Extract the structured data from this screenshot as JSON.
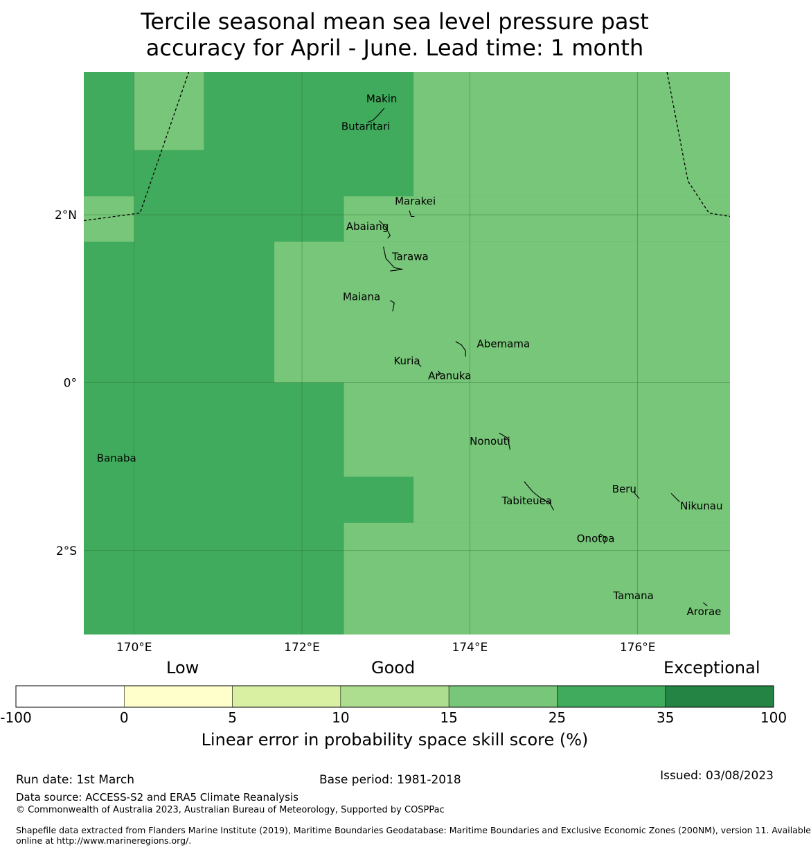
{
  "title": {
    "line1": "Tercile seasonal mean sea level pressure past",
    "line2": "accuracy for April - June. Lead time: 1 month"
  },
  "map": {
    "lon_range": [
      169.4,
      177.1
    ],
    "lat_range": [
      -3.0,
      3.7
    ],
    "lon_ticks": [
      {
        "value": 170,
        "label": "170°E"
      },
      {
        "value": 172,
        "label": "172°E"
      },
      {
        "value": 174,
        "label": "174°E"
      },
      {
        "value": 176,
        "label": "176°E"
      }
    ],
    "lat_ticks": [
      {
        "value": 2,
        "label": "2°N"
      },
      {
        "value": 0,
        "label": "0°"
      },
      {
        "value": -2,
        "label": "2°S"
      }
    ],
    "grid": true,
    "cells": [
      {
        "lon": [
          169.4,
          177.1
        ],
        "lat": [
          -3.0,
          3.7
        ],
        "category": "25-35"
      },
      {
        "lon": [
          170.0,
          170.83
        ],
        "lat": [
          2.77,
          3.7
        ],
        "category": "15-25"
      },
      {
        "lon": [
          169.4,
          170.0
        ],
        "lat": [
          1.68,
          2.22
        ],
        "category": "15-25"
      },
      {
        "lon": [
          173.33,
          177.1
        ],
        "lat": [
          2.22,
          3.7
        ],
        "category": "15-25"
      },
      {
        "lon": [
          172.5,
          177.1
        ],
        "lat": [
          1.68,
          2.22
        ],
        "category": "15-25"
      },
      {
        "lon": [
          171.67,
          177.1
        ],
        "lat": [
          0.0,
          1.68
        ],
        "category": "15-25"
      },
      {
        "lon": [
          172.5,
          177.1
        ],
        "lat": [
          -1.12,
          0.0
        ],
        "category": "15-25"
      },
      {
        "lon": [
          173.33,
          177.1
        ],
        "lat": [
          -1.67,
          -1.12
        ],
        "category": "15-25"
      },
      {
        "lon": [
          172.5,
          177.1
        ],
        "lat": [
          -3.0,
          -1.67
        ],
        "category": "15-25"
      }
    ],
    "boundaries": [
      [
        [
          169.4,
          1.93
        ],
        [
          170.07,
          2.02
        ],
        [
          170.65,
          3.7
        ]
      ],
      [
        [
          176.35,
          3.7
        ],
        [
          176.6,
          2.4
        ],
        [
          176.85,
          2.02
        ],
        [
          177.1,
          1.98
        ]
      ]
    ],
    "places": [
      {
        "name": "Makin",
        "lon": 172.95,
        "lat": 3.34
      },
      {
        "name": "Butaritari",
        "lon": 172.76,
        "lat": 3.01
      },
      {
        "name": "Marakei",
        "lon": 173.35,
        "lat": 2.12
      },
      {
        "name": "Abaiang",
        "lon": 172.78,
        "lat": 1.82
      },
      {
        "name": "Tarawa",
        "lon": 173.29,
        "lat": 1.46
      },
      {
        "name": "Maiana",
        "lon": 172.71,
        "lat": 0.98
      },
      {
        "name": "Abemama",
        "lon": 174.4,
        "lat": 0.42
      },
      {
        "name": "Kuria",
        "lon": 173.25,
        "lat": 0.22
      },
      {
        "name": "Aranuka",
        "lon": 173.76,
        "lat": 0.04
      },
      {
        "name": "Banaba",
        "lon": 169.79,
        "lat": -0.94
      },
      {
        "name": "Nonouti",
        "lon": 174.24,
        "lat": -0.74
      },
      {
        "name": "Tabiteuea",
        "lon": 174.68,
        "lat": -1.45
      },
      {
        "name": "Beru",
        "lon": 175.84,
        "lat": -1.31
      },
      {
        "name": "Nikunau",
        "lon": 176.76,
        "lat": -1.51
      },
      {
        "name": "Onotoa",
        "lon": 175.5,
        "lat": -1.9
      },
      {
        "name": "Tamana",
        "lon": 175.95,
        "lat": -2.58
      },
      {
        "name": "Arorae",
        "lon": 176.79,
        "lat": -2.77
      }
    ]
  },
  "colorbar": {
    "labels": {
      "low": "Low",
      "good": "Good",
      "exceptional": "Exceptional"
    },
    "bins": [
      {
        "from": "-100",
        "to": "0",
        "color": "#ffffff"
      },
      {
        "from": "0",
        "to": "5",
        "color": "#ffffcc"
      },
      {
        "from": "5",
        "to": "10",
        "color": "#d9f0a3"
      },
      {
        "from": "10",
        "to": "15",
        "color": "#addd8e"
      },
      {
        "from": "15",
        "to": "25",
        "color": "#78c679"
      },
      {
        "from": "25",
        "to": "35",
        "color": "#41ab5d"
      },
      {
        "from": "35",
        "to": "100",
        "color": "#238443"
      }
    ],
    "ticks": [
      "-100",
      "0",
      "5",
      "10",
      "15",
      "25",
      "35",
      "100"
    ],
    "title": "Linear error in probability space skill score (%)"
  },
  "category_colors": {
    "15-25": "#78c679",
    "25-35": "#41ab5d"
  },
  "footer": {
    "run_date": "Run date: 1st March",
    "base_period": "Base period: 1981-2018",
    "issued": "Issued: 03/08/2023",
    "data_source": "Data source: ACCESS-S2 and ERA5 Climate Reanalysis",
    "copyright": "© Commonwealth of Australia 2023, Australian Bureau of Meteorology, Supported by COSPPac",
    "shapefile_line1": "Shapefile data extracted from Flanders Marine Institute (2019), Maritime Boundaries Geodatabase: Maritime Boundaries and Exclusive Economic Zones (200NM), version 11. Available",
    "shapefile_line2": "online at http://www.marineregions.org/."
  }
}
